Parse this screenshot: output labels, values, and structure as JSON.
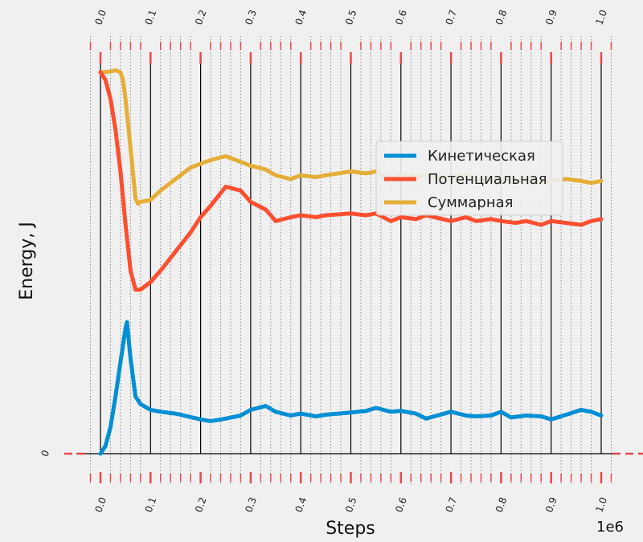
{
  "chart_data": {
    "type": "line",
    "title": "",
    "xlabel": "Steps",
    "ylabel": "Energy, J",
    "x_offset_label": "1e6",
    "xlim": [
      0,
      1.0
    ],
    "x_major_ticks": [
      "0.0",
      "0.1",
      "0.2",
      "0.3",
      "0.4",
      "0.5",
      "0.6",
      "0.7",
      "0.8",
      "0.9",
      "1.0"
    ],
    "y_tick_labels": [
      "0"
    ],
    "grid": true,
    "legend_position": "center-right",
    "series": [
      {
        "name": "Кинетическая",
        "color": "#008fd5",
        "x": [
          0.0,
          0.01,
          0.02,
          0.03,
          0.04,
          0.05,
          0.053,
          0.06,
          0.07,
          0.08,
          0.1,
          0.12,
          0.15,
          0.2,
          0.22,
          0.25,
          0.28,
          0.3,
          0.33,
          0.35,
          0.38,
          0.4,
          0.43,
          0.45,
          0.5,
          0.53,
          0.55,
          0.58,
          0.6,
          0.63,
          0.65,
          0.7,
          0.73,
          0.75,
          0.78,
          0.8,
          0.82,
          0.85,
          0.88,
          0.9,
          0.93,
          0.96,
          0.98,
          1.0
        ],
        "values": [
          0.0,
          0.02,
          0.07,
          0.15,
          0.24,
          0.33,
          0.345,
          0.25,
          0.15,
          0.13,
          0.115,
          0.11,
          0.105,
          0.09,
          0.085,
          0.092,
          0.1,
          0.115,
          0.125,
          0.11,
          0.1,
          0.105,
          0.098,
          0.102,
          0.108,
          0.112,
          0.12,
          0.11,
          0.112,
          0.105,
          0.092,
          0.11,
          0.1,
          0.098,
          0.1,
          0.11,
          0.095,
          0.1,
          0.098,
          0.09,
          0.102,
          0.115,
          0.11,
          0.1
        ]
      },
      {
        "name": "Потенциальная",
        "color": "#fc4f30",
        "x": [
          0.0,
          0.01,
          0.02,
          0.03,
          0.04,
          0.05,
          0.06,
          0.07,
          0.08,
          0.1,
          0.12,
          0.15,
          0.18,
          0.2,
          0.22,
          0.25,
          0.28,
          0.3,
          0.33,
          0.35,
          0.38,
          0.4,
          0.43,
          0.45,
          0.5,
          0.53,
          0.55,
          0.58,
          0.6,
          0.63,
          0.65,
          0.7,
          0.73,
          0.75,
          0.78,
          0.8,
          0.83,
          0.85,
          0.88,
          0.9,
          0.93,
          0.96,
          0.98,
          1.0
        ],
        "values": [
          1.0,
          0.98,
          0.93,
          0.85,
          0.74,
          0.6,
          0.48,
          0.43,
          0.43,
          0.45,
          0.48,
          0.53,
          0.58,
          0.62,
          0.65,
          0.7,
          0.69,
          0.66,
          0.64,
          0.61,
          0.62,
          0.625,
          0.62,
          0.625,
          0.63,
          0.625,
          0.63,
          0.61,
          0.62,
          0.615,
          0.625,
          0.61,
          0.62,
          0.61,
          0.615,
          0.61,
          0.605,
          0.61,
          0.6,
          0.61,
          0.605,
          0.6,
          0.61,
          0.615
        ]
      },
      {
        "name": "Суммарная",
        "color": "#e5ae38",
        "x": [
          0.0,
          0.02,
          0.03,
          0.04,
          0.045,
          0.05,
          0.06,
          0.07,
          0.075,
          0.08,
          0.1,
          0.12,
          0.15,
          0.18,
          0.2,
          0.22,
          0.25,
          0.28,
          0.3,
          0.33,
          0.35,
          0.38,
          0.4,
          0.43,
          0.45,
          0.5,
          0.53,
          0.55,
          0.58,
          0.6,
          0.63,
          0.65,
          0.7,
          0.73,
          0.75,
          0.78,
          0.8,
          0.83,
          0.85,
          0.88,
          0.9,
          0.93,
          0.96,
          0.98,
          1.0
        ],
        "values": [
          1.0,
          1.002,
          1.005,
          1.0,
          0.98,
          0.93,
          0.8,
          0.67,
          0.655,
          0.66,
          0.665,
          0.69,
          0.72,
          0.75,
          0.76,
          0.77,
          0.78,
          0.765,
          0.755,
          0.745,
          0.73,
          0.72,
          0.73,
          0.725,
          0.73,
          0.74,
          0.735,
          0.74,
          0.72,
          0.73,
          0.725,
          0.73,
          0.72,
          0.73,
          0.715,
          0.72,
          0.72,
          0.715,
          0.72,
          0.71,
          0.715,
          0.72,
          0.715,
          0.71,
          0.715
        ]
      }
    ]
  }
}
